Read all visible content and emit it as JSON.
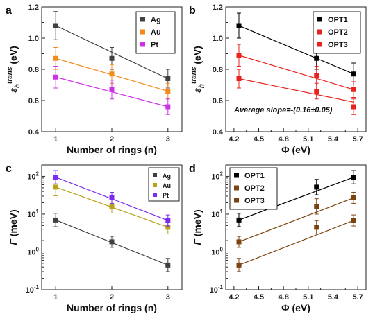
{
  "chart_data": [
    {
      "panel": "a",
      "type": "line",
      "x": [
        1,
        2,
        3
      ],
      "xticks": [
        "1",
        "2",
        "3"
      ],
      "xlabel": "Number of rings (n)",
      "ylabel": "ε_h^trans (eV)",
      "ylabel_parts": [
        "ε",
        "h",
        "trans",
        "(eV)"
      ],
      "ylim": [
        0.4,
        1.2
      ],
      "yticks": [
        "0.4",
        "0.6",
        "0.8",
        "1.0",
        "1.2"
      ],
      "legend": "top-right",
      "series": [
        {
          "name": "Ag",
          "color": "#404040",
          "values": [
            1.08,
            0.87,
            0.74
          ],
          "err": [
            0.09,
            0.07,
            0.06
          ],
          "fit": [
            1.08,
            0.91,
            0.74
          ]
        },
        {
          "name": "Au",
          "color": "#f28a1c",
          "values": [
            0.87,
            0.77,
            0.66
          ],
          "err": [
            0.07,
            0.06,
            0.05
          ],
          "fit": [
            0.87,
            0.765,
            0.66
          ]
        },
        {
          "name": "Pt",
          "color": "#cc33e6",
          "values": [
            0.75,
            0.67,
            0.56
          ],
          "err": [
            0.07,
            0.06,
            0.05
          ],
          "fit": [
            0.75,
            0.655,
            0.56
          ]
        }
      ]
    },
    {
      "panel": "b",
      "type": "line",
      "x": [
        4.26,
        5.2,
        5.65
      ],
      "xlim": [
        4.1,
        5.8
      ],
      "xticks": [
        "4.2",
        "4.5",
        "4.8",
        "5.1",
        "5.4",
        "5.7"
      ],
      "xlabel": "Φ (eV)",
      "ylabel": "ε_h^trans (eV)",
      "ylabel_parts": [
        "ε",
        "h",
        "trans",
        "(eV)"
      ],
      "ylim": [
        0.4,
        1.2
      ],
      "yticks": [
        "0.4",
        "0.6",
        "0.8",
        "1.0",
        "1.2"
      ],
      "legend": "top-right",
      "annotation": "Average slope=-(0.16±0.05)",
      "series": [
        {
          "name": "OPT1",
          "color": "#000000",
          "values": [
            1.08,
            0.87,
            0.77
          ],
          "err": [
            0.08,
            0.07,
            0.07
          ],
          "fit": [
            1.08,
            0.87,
            0.77
          ]
        },
        {
          "name": "OPT2",
          "color": "#e8231e",
          "values": [
            0.89,
            0.76,
            0.67
          ],
          "err": [
            0.07,
            0.06,
            0.05
          ],
          "fit": [
            0.89,
            0.74,
            0.67
          ]
        },
        {
          "name": "OPT3",
          "color": "#e8231e",
          "values": [
            0.74,
            0.66,
            0.56
          ],
          "err": [
            0.06,
            0.05,
            0.05
          ],
          "fit": [
            0.74,
            0.64,
            0.59
          ]
        }
      ]
    },
    {
      "panel": "c",
      "type": "line",
      "x": [
        1,
        2,
        3
      ],
      "xticks": [
        "1",
        "2",
        "3"
      ],
      "xlabel": "Number of rings (n)",
      "ylabel": "Γ (meV)",
      "ylabel_parts": [
        "Γ",
        "(meV)"
      ],
      "yscale": "log",
      "ylim": [
        0.1,
        200
      ],
      "yticks": [
        "10",
        "10",
        "10",
        "10"
      ],
      "yticks_exp": [
        "-1",
        "0",
        "1",
        "2"
      ],
      "legend": "top-right",
      "series": [
        {
          "name": "Ag",
          "color": "#404040",
          "values": [
            7,
            1.85,
            0.45
          ],
          "err_factor": [
            1.5,
            1.4,
            1.5
          ]
        },
        {
          "name": "Au",
          "color": "#b9a21a",
          "values": [
            52,
            16,
            4.5
          ],
          "err_factor": [
            1.7,
            1.5,
            1.5
          ]
        },
        {
          "name": "Pt",
          "color": "#7a2cf0",
          "values": [
            95,
            27,
            6.8
          ],
          "err_factor": [
            1.5,
            1.4,
            1.4
          ]
        }
      ]
    },
    {
      "panel": "d",
      "type": "line",
      "x": [
        4.26,
        5.2,
        5.65
      ],
      "xlim": [
        4.1,
        5.8
      ],
      "xticks": [
        "4.2",
        "4.5",
        "4.8",
        "5.1",
        "5.4",
        "5.7"
      ],
      "xlabel": "Φ (eV)",
      "ylabel": "Γ (meV)",
      "ylabel_parts": [
        "Γ",
        "(meV)"
      ],
      "yscale": "log",
      "ylim": [
        0.1,
        200
      ],
      "yticks": [
        "10",
        "10",
        "10",
        "10"
      ],
      "yticks_exp": [
        "-1",
        "0",
        "1",
        "2"
      ],
      "legend": "top-left",
      "series": [
        {
          "name": "OPT1",
          "color": "#000000",
          "values": [
            7,
            52,
            95
          ],
          "err_factor": [
            1.5,
            1.6,
            1.5
          ]
        },
        {
          "name": "OPT2",
          "color": "#7a4410",
          "values": [
            1.85,
            16,
            27
          ],
          "err_factor": [
            1.4,
            1.6,
            1.4
          ]
        },
        {
          "name": "OPT3",
          "color": "#7a4410",
          "values": [
            0.45,
            4.5,
            6.8
          ],
          "err_factor": [
            1.5,
            1.5,
            1.4
          ]
        }
      ]
    }
  ]
}
